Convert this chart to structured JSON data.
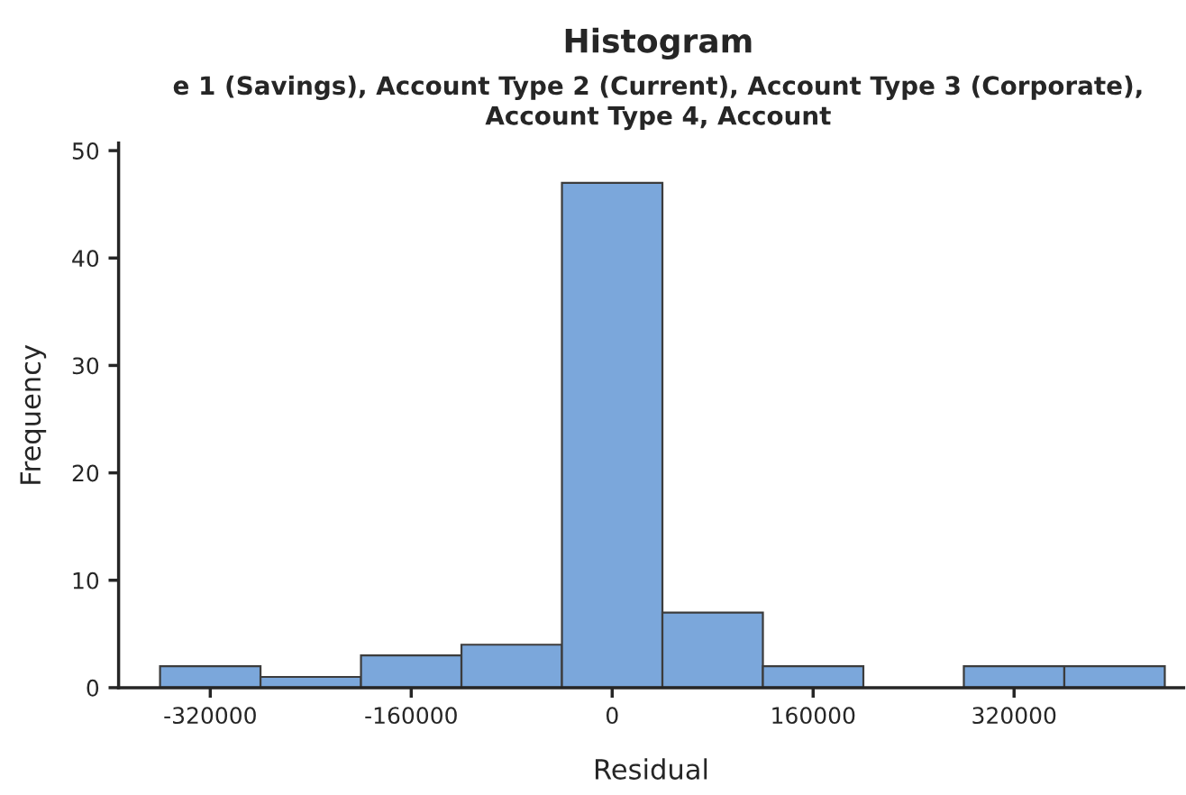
{
  "chart_data": {
    "type": "histogram",
    "title": "Histogram",
    "subtitle": "e 1 (Savings), Account Type 2 (Current), Account Type 3 (Corporate),\nAccount Type 4, Account",
    "xlabel": "Residual",
    "ylabel": "Frequency",
    "bins": [
      -360000,
      -280000,
      -200000,
      -120000,
      -40000,
      40000,
      120000,
      200000,
      280000,
      360000,
      440000
    ],
    "values": [
      2,
      1,
      3,
      4,
      47,
      7,
      2,
      0,
      2,
      2
    ],
    "color": "#7ba7db",
    "xlim": [
      -393000,
      455000
    ],
    "xticks": [
      -320000,
      -160000,
      0,
      160000,
      320000
    ],
    "ylim": [
      0,
      50.7
    ],
    "yticks": [
      0,
      10,
      20,
      30,
      40,
      50
    ],
    "grid": false
  }
}
